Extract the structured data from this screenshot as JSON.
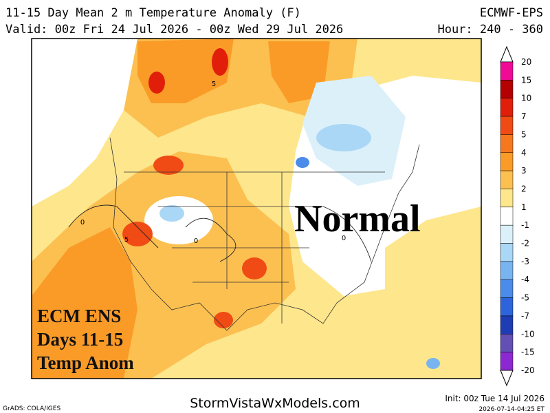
{
  "header": {
    "title": "11-15 Day Mean 2 m Temperature Anomaly (F)",
    "valid": "Valid: 00z Fri 24 Jul 2026 - 00z Wed 29 Jul 2026",
    "model": "ECMWF-EPS",
    "hour": "Hour: 240 - 360"
  },
  "map": {
    "annotation": "Normal",
    "label_lines": [
      "ECM ENS",
      "Days 11-15",
      "Temp Anom"
    ],
    "contour_labels": [
      "5",
      "5",
      "0",
      "0",
      "0"
    ]
  },
  "colorbar": {
    "labels": [
      "20",
      "15",
      "10",
      "7",
      "5",
      "4",
      "3",
      "2",
      "1",
      "-1",
      "-2",
      "-3",
      "-4",
      "-5",
      "-7",
      "-10",
      "-15",
      "-20"
    ],
    "colors": [
      "#f00a96",
      "#b40000",
      "#e01e0a",
      "#f04b14",
      "#f5781e",
      "#fa9b28",
      "#fcc050",
      "#fde68c",
      "#ffffff",
      "#dcf0fa",
      "#aad7f5",
      "#78b4f0",
      "#4b8ceb",
      "#2d64dc",
      "#1e3cb4",
      "#6450b4",
      "#8c28d2"
    ]
  },
  "footer": {
    "credit": "GrADS: COLA/IGES",
    "site": "StormVistaWxModels.com",
    "init": "Init: 00z Tue 14 Jul 2026",
    "stamp": "2026-07-14-04:25 ET"
  }
}
